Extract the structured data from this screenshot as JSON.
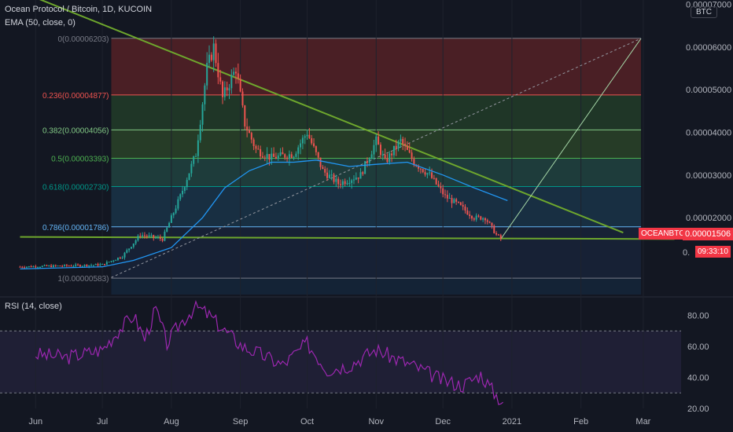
{
  "header": {
    "symbol_title": "Ocean Protocol / Bitcoin, 1D, KUCOIN",
    "ema_label": "EMA (50, close, 0)",
    "rsi_label": "RSI (14, close)",
    "currency_button": "BTC"
  },
  "price_tags": {
    "ticker": "OCEANBTC",
    "last_price": "0.00001506",
    "countdown": "09:33:10",
    "partial_left": "0."
  },
  "colors": {
    "background": "#131722",
    "trendline": "#6ea72d",
    "ema": "#2196f3",
    "rsi": "#9c27b0",
    "up_candle": "#26a69a",
    "down_candle": "#ef5350",
    "price_tag": "#f23645"
  },
  "chart_data": [
    {
      "type": "candlestick",
      "title": "Ocean Protocol / Bitcoin, 1D, KUCOIN",
      "x_tick_labels": [
        "Jun",
        "Jul",
        "Aug",
        "Sep",
        "Oct",
        "Nov",
        "Dec",
        "2021",
        "Feb",
        "Mar"
      ],
      "y_tick_labels": [
        "0.00007000",
        "0.00006000",
        "0.00005000",
        "0.00004000",
        "0.00003000",
        "0.00002000"
      ],
      "ylim": [
        2e-06,
        7.1e-05
      ],
      "price_path": [
        {
          "date": "2020-05-25",
          "price": 8.5e-06
        },
        {
          "date": "2020-06-20",
          "price": 8.8e-06
        },
        {
          "date": "2020-07-01",
          "price": 9e-06
        },
        {
          "date": "2020-07-10",
          "price": 1.1e-05
        },
        {
          "date": "2020-07-18",
          "price": 1.6e-05
        },
        {
          "date": "2020-07-28",
          "price": 1.5e-05
        },
        {
          "date": "2020-08-05",
          "price": 2.5e-05
        },
        {
          "date": "2020-08-12",
          "price": 3.5e-05
        },
        {
          "date": "2020-08-17",
          "price": 5.5e-05
        },
        {
          "date": "2020-08-20",
          "price": 6e-05
        },
        {
          "date": "2020-08-24",
          "price": 4.8e-05
        },
        {
          "date": "2020-08-30",
          "price": 5.5e-05
        },
        {
          "date": "2020-09-03",
          "price": 4.2e-05
        },
        {
          "date": "2020-09-08",
          "price": 3.6e-05
        },
        {
          "date": "2020-09-15",
          "price": 3.4e-05
        },
        {
          "date": "2020-09-25",
          "price": 3.5e-05
        },
        {
          "date": "2020-10-01",
          "price": 4e-05
        },
        {
          "date": "2020-10-08",
          "price": 3.1e-05
        },
        {
          "date": "2020-10-15",
          "price": 2.8e-05
        },
        {
          "date": "2020-10-25",
          "price": 3e-05
        },
        {
          "date": "2020-11-01",
          "price": 3.8e-05
        },
        {
          "date": "2020-11-05",
          "price": 3.3e-05
        },
        {
          "date": "2020-11-12",
          "price": 3.8e-05
        },
        {
          "date": "2020-11-18",
          "price": 3.3e-05
        },
        {
          "date": "2020-11-25",
          "price": 3e-05
        },
        {
          "date": "2020-12-02",
          "price": 2.5e-05
        },
        {
          "date": "2020-12-08",
          "price": 2.3e-05
        },
        {
          "date": "2020-12-15",
          "price": 2e-05
        },
        {
          "date": "2020-12-20",
          "price": 2e-05
        },
        {
          "date": "2020-12-25",
          "price": 1.6e-05
        },
        {
          "date": "2020-12-27",
          "price": 1.51e-05
        }
      ],
      "series": [
        {
          "name": "EMA (50, close, 0)",
          "points": [
            {
              "date": "2020-05-25",
              "price": 8e-06
            },
            {
              "date": "2020-07-01",
              "price": 8.5e-06
            },
            {
              "date": "2020-07-15",
              "price": 1e-05
            },
            {
              "date": "2020-08-01",
              "price": 1.3e-05
            },
            {
              "date": "2020-08-15",
              "price": 2e-05
            },
            {
              "date": "2020-08-25",
              "price": 2.7e-05
            },
            {
              "date": "2020-09-05",
              "price": 3.1e-05
            },
            {
              "date": "2020-09-15",
              "price": 3.3e-05
            },
            {
              "date": "2020-09-25",
              "price": 3.3e-05
            },
            {
              "date": "2020-10-05",
              "price": 3.35e-05
            },
            {
              "date": "2020-10-20",
              "price": 3.2e-05
            },
            {
              "date": "2020-11-01",
              "price": 3.25e-05
            },
            {
              "date": "2020-11-15",
              "price": 3.3e-05
            },
            {
              "date": "2020-12-01",
              "price": 3e-05
            },
            {
              "date": "2020-12-15",
              "price": 2.7e-05
            },
            {
              "date": "2020-12-30",
              "price": 2.4e-05
            }
          ]
        }
      ],
      "fibonacci_levels": [
        {
          "label": "0(0.00006203)",
          "price": 6.203e-05
        },
        {
          "label": "0.236(0.00004877)",
          "price": 4.877e-05
        },
        {
          "label": "0.382(0.00004056)",
          "price": 4.056e-05
        },
        {
          "label": "0.5(0.00003393)",
          "price": 3.393e-05
        },
        {
          "label": "0.618(0.00002730)",
          "price": 2.73e-05
        },
        {
          "label": "0.786(0.00001786)",
          "price": 1.786e-05
        },
        {
          "label": "1(0.00000583)",
          "price": 5.83e-06
        }
      ],
      "trendlines": [
        {
          "kind": "descending",
          "from": {
            "date": "2020-05-25",
            "price": 7.3e-05
          },
          "to": {
            "date": "2021-02-20",
            "price": 1.65e-05
          }
        },
        {
          "kind": "support",
          "from": {
            "date": "2020-05-25",
            "price": 1.55e-05
          },
          "to": {
            "date": "2021-03-15",
            "price": 1.5e-05
          }
        },
        {
          "kind": "projection",
          "from": {
            "date": "2020-12-27",
            "price": 1.5e-05
          },
          "to": {
            "date": "2021-02-28",
            "price": 6.2e-05
          }
        },
        {
          "kind": "dashed-diagonal",
          "from": {
            "date": "2020-07-05",
            "price": 6e-06
          },
          "to": {
            "date": "2021-02-28",
            "price": 6.2e-05
          }
        }
      ]
    },
    {
      "type": "line",
      "title": "RSI (14, close)",
      "y_tick_labels": [
        "80.00",
        "60.00",
        "40.00",
        "20.00"
      ],
      "ylim": [
        20,
        90
      ],
      "bands": [
        70,
        30
      ],
      "series": [
        {
          "name": "RSI (14, close)",
          "points": [
            {
              "date": "2020-06-01",
              "value": 55
            },
            {
              "date": "2020-06-15",
              "value": 53
            },
            {
              "date": "2020-07-01",
              "value": 58
            },
            {
              "date": "2020-07-08",
              "value": 70
            },
            {
              "date": "2020-07-15",
              "value": 80
            },
            {
              "date": "2020-07-20",
              "value": 65
            },
            {
              "date": "2020-07-25",
              "value": 84
            },
            {
              "date": "2020-07-30",
              "value": 62
            },
            {
              "date": "2020-08-05",
              "value": 75
            },
            {
              "date": "2020-08-12",
              "value": 86
            },
            {
              "date": "2020-08-18",
              "value": 80
            },
            {
              "date": "2020-08-25",
              "value": 70
            },
            {
              "date": "2020-09-02",
              "value": 60
            },
            {
              "date": "2020-09-10",
              "value": 55
            },
            {
              "date": "2020-09-20",
              "value": 48
            },
            {
              "date": "2020-10-01",
              "value": 62
            },
            {
              "date": "2020-10-10",
              "value": 45
            },
            {
              "date": "2020-10-20",
              "value": 48
            },
            {
              "date": "2020-11-01",
              "value": 58
            },
            {
              "date": "2020-11-10",
              "value": 52
            },
            {
              "date": "2020-11-20",
              "value": 46
            },
            {
              "date": "2020-12-01",
              "value": 38
            },
            {
              "date": "2020-12-10",
              "value": 35
            },
            {
              "date": "2020-12-18",
              "value": 42
            },
            {
              "date": "2020-12-24",
              "value": 30
            },
            {
              "date": "2020-12-28",
              "value": 24
            }
          ]
        }
      ]
    }
  ]
}
